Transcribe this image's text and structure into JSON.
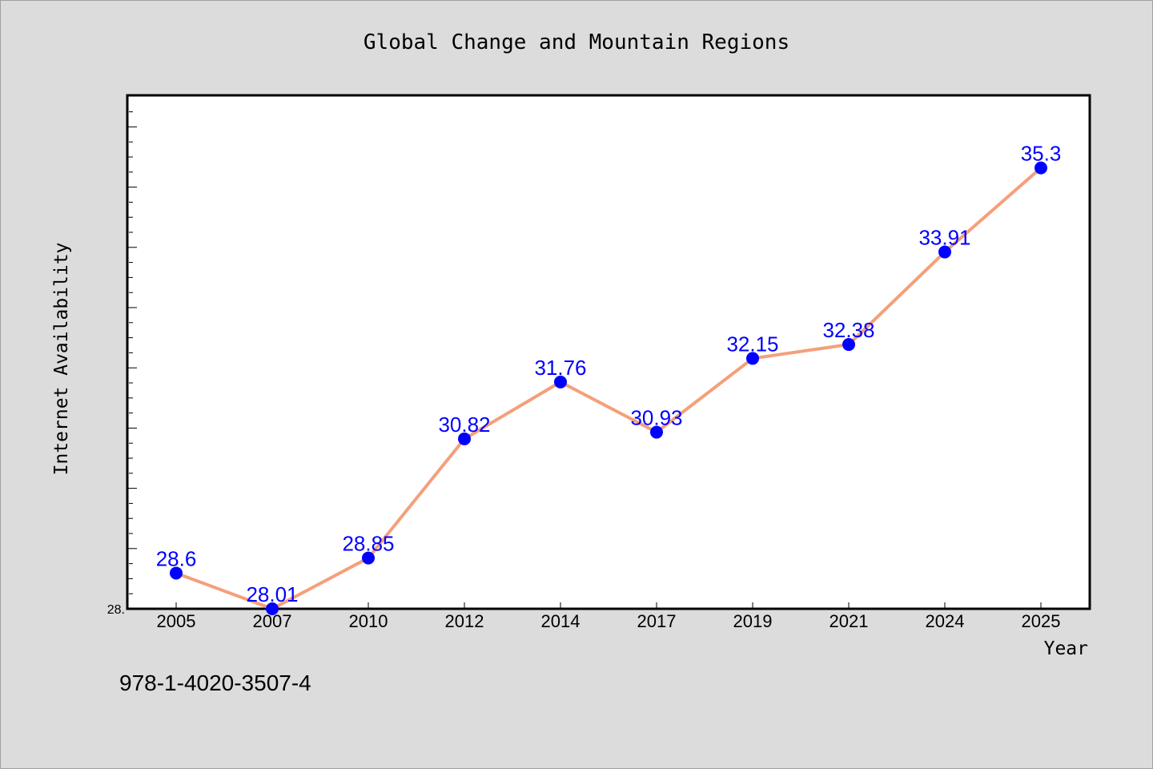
{
  "chart_data": {
    "type": "line",
    "title": "Global Change and Mountain Regions",
    "xlabel": "Year",
    "ylabel": "Internet Availability",
    "categories": [
      "2005",
      "2007",
      "2010",
      "2012",
      "2014",
      "2017",
      "2019",
      "2021",
      "2024",
      "2025"
    ],
    "series": [
      {
        "values": [
          28.6,
          28.01,
          28.85,
          30.82,
          31.76,
          30.93,
          32.15,
          32.38,
          33.91,
          35.3
        ],
        "data_labels": [
          "28.6",
          "28.01",
          "28.85",
          "30.82",
          "31.76",
          "30.93",
          "32.15",
          "32.38",
          "33.91",
          "35.3"
        ]
      }
    ],
    "y_tick_labels": [
      "28."
    ],
    "ylim": [
      28.01,
      36.5
    ],
    "grid": false,
    "legend": "none",
    "colors": {
      "line": "#f4a07a",
      "marker": "#0000ff",
      "label": "#0000ff",
      "background": "#dcdcdc",
      "plot_background": "#ffffff"
    }
  },
  "footer": {
    "isbn": "978-1-4020-3507-4"
  }
}
